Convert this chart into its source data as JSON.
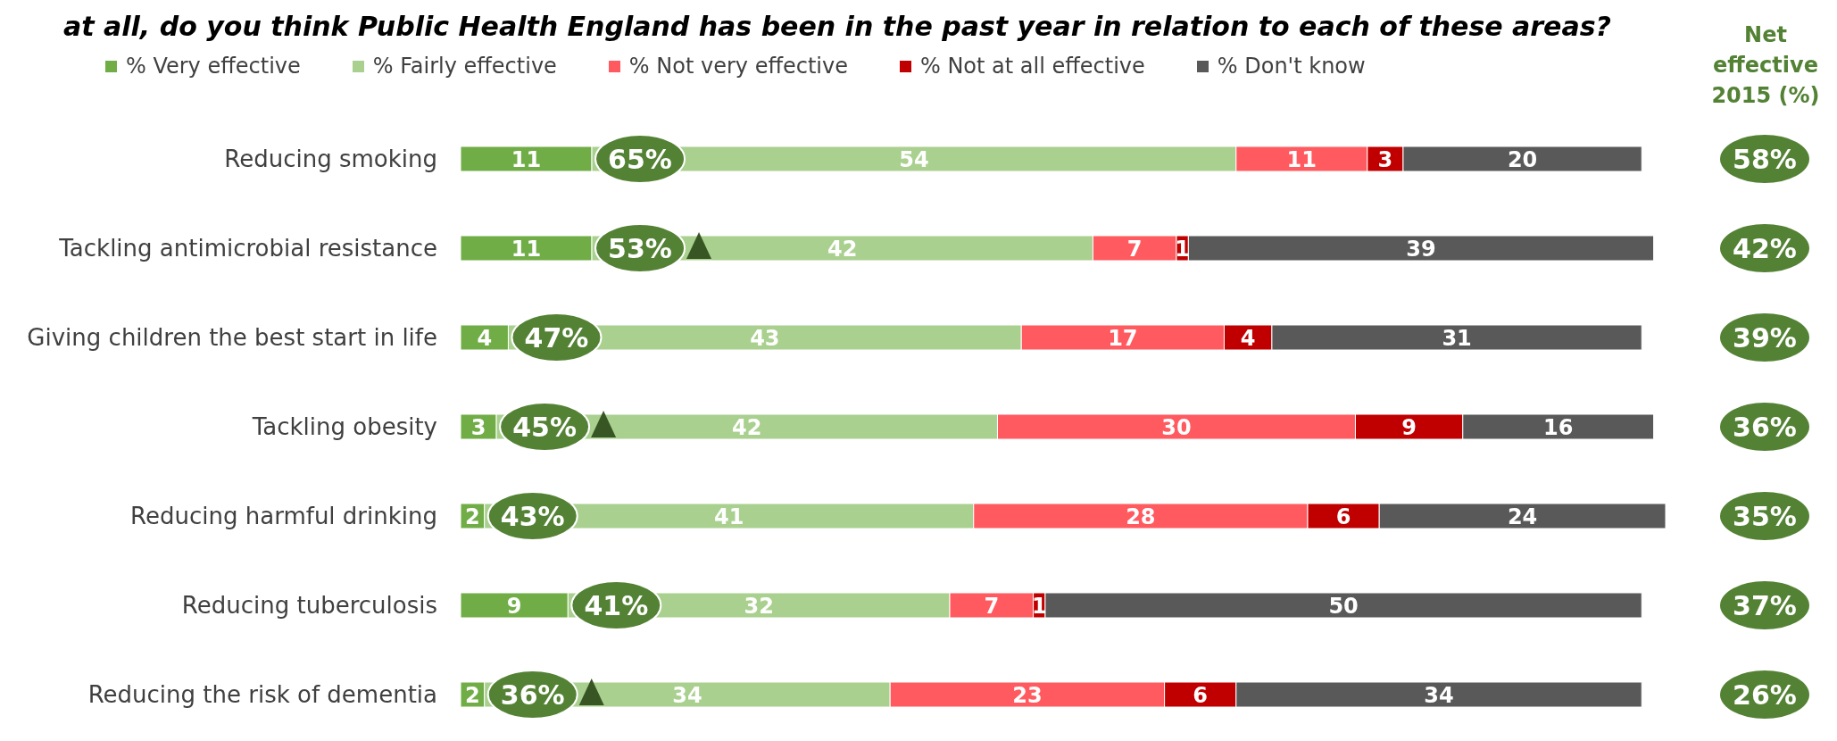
{
  "chart_data": {
    "type": "bar",
    "orientation": "horizontal",
    "stacked": true,
    "title": "at all, do you think Public Health England has been in the past year in relation to each of these areas?",
    "categories": [
      "Reducing smoking",
      "Tackling antimicrobial resistance",
      "Giving children the best start in life",
      "Tackling obesity",
      "Reducing harmful drinking",
      "Reducing tuberculosis",
      "Reducing the risk of dementia"
    ],
    "series": [
      {
        "name": "% Very effective",
        "color": "#70ad47",
        "values": [
          11,
          11,
          4,
          3,
          2,
          9,
          2
        ]
      },
      {
        "name": "% Fairly effective",
        "color": "#a9d08e",
        "values": [
          54,
          42,
          43,
          42,
          41,
          32,
          34
        ]
      },
      {
        "name": "% Not very effective",
        "color": "#ff5a5f",
        "values": [
          11,
          7,
          17,
          30,
          28,
          7,
          23
        ]
      },
      {
        "name": "% Not at all effective",
        "color": "#c00000",
        "values": [
          3,
          1,
          4,
          9,
          6,
          1,
          6
        ]
      },
      {
        "name": "% Don't know",
        "color": "#595959",
        "values": [
          20,
          39,
          31,
          16,
          24,
          50,
          34
        ]
      }
    ],
    "xlim": [
      0,
      101
    ],
    "tick_labels": "y",
    "data_labels": true,
    "legend": "top",
    "grid": false,
    "annotations": [
      "65%",
      "53%",
      "47%",
      "45%",
      "43%",
      "41%",
      "36%",
      "Net effective 2015 (%)",
      "58%",
      "42%",
      "39%",
      "36%",
      "35%",
      "37%",
      "26%"
    ]
  }
}
